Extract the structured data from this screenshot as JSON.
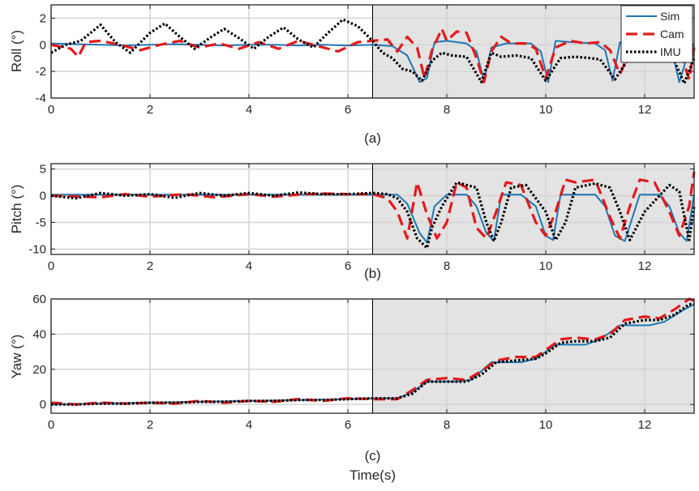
{
  "chart_data": [
    {
      "type": "line",
      "panel": "(a)",
      "ylabel": "Roll (°)",
      "xlabel": "",
      "xlim": [
        0,
        13
      ],
      "ylim": [
        -4,
        3
      ],
      "xticks": [
        "0",
        "2",
        "4",
        "6",
        "8",
        "10",
        "12"
      ],
      "yticks": [
        "-4",
        "-2",
        "0",
        "2"
      ],
      "shaded_region": [
        6.5,
        13
      ],
      "grid": true,
      "series": [
        {
          "name": "Sim",
          "color": "#1f77b4",
          "style": "solid",
          "x": [
            0,
            0.5,
            1,
            1.5,
            2,
            2.5,
            3,
            3.5,
            4,
            4.5,
            5,
            5.5,
            6,
            6.5,
            6.9,
            7.2,
            7.45,
            7.6,
            7.75,
            8.0,
            8.4,
            8.6,
            8.75,
            8.9,
            9.2,
            9.7,
            9.9,
            10.05,
            10.2,
            10.5,
            11.0,
            11.2,
            11.35,
            11.5,
            11.8,
            12.4,
            12.55,
            12.7,
            12.85,
            13.0
          ],
          "y": [
            0.1,
            0.05,
            0,
            -0.05,
            0,
            0.05,
            0,
            -0.05,
            0,
            0,
            -0.05,
            0,
            -0.05,
            0,
            -0.1,
            -0.8,
            -2.8,
            -2.5,
            0.2,
            0.3,
            0.1,
            -0.5,
            -2.7,
            -0.2,
            0.1,
            0.1,
            -0.5,
            -2.8,
            0.3,
            0.2,
            0.1,
            -0.4,
            -2.7,
            0.2,
            0.1,
            0,
            -0.4,
            -2.8,
            -1.0,
            0.1
          ]
        },
        {
          "name": "Cam",
          "color": "#e41a1c",
          "style": "dashed",
          "x": [
            0,
            0.4,
            0.55,
            0.7,
            1.0,
            1.4,
            1.8,
            2.2,
            2.6,
            3.0,
            3.4,
            3.8,
            4.2,
            4.6,
            5.0,
            5.4,
            5.8,
            6.2,
            6.5,
            6.8,
            7.0,
            7.2,
            7.4,
            7.55,
            7.7,
            7.9,
            8.0,
            8.2,
            8.4,
            8.6,
            8.75,
            8.9,
            9.1,
            9.3,
            9.6,
            9.8,
            10.0,
            10.2,
            10.5,
            10.8,
            11.1,
            11.3,
            11.5,
            11.8,
            12.1,
            12.4,
            12.7,
            12.9,
            13.0
          ],
          "y": [
            0,
            -0.3,
            -0.9,
            0.2,
            0.3,
            0,
            -0.4,
            0,
            0.3,
            -0.2,
            0.1,
            -0.3,
            0.2,
            -0.3,
            0.3,
            -0.1,
            -0.5,
            0.2,
            0.3,
            0.4,
            -0.5,
            0.6,
            -0.2,
            -2.5,
            -0.4,
            1.2,
            0.3,
            1.0,
            0.9,
            -1.0,
            -2.8,
            -0.5,
            0.6,
            0.1,
            0.1,
            -0.3,
            -2.5,
            -0.2,
            0.3,
            0.1,
            0.2,
            -0.4,
            -2.2,
            0.3,
            0.1,
            0,
            -0.3,
            -2.6,
            -0.2
          ]
        },
        {
          "name": "IMU",
          "color": "#000000",
          "style": "dotted",
          "x": [
            0,
            0.3,
            0.6,
            0.9,
            1.0,
            1.3,
            1.6,
            2.0,
            2.3,
            2.6,
            2.9,
            3.2,
            3.5,
            3.8,
            4.1,
            4.4,
            4.7,
            5.0,
            5.3,
            5.6,
            5.9,
            6.2,
            6.5,
            6.7,
            6.9,
            7.1,
            7.3,
            7.5,
            7.7,
            7.9,
            8.1,
            8.4,
            8.7,
            8.9,
            9.1,
            9.4,
            9.7,
            10.0,
            10.3,
            10.6,
            10.9,
            11.1,
            11.4,
            11.7,
            12.0,
            12.3,
            12.6,
            12.8,
            13.0
          ],
          "y": [
            -0.6,
            0,
            0.3,
            1.2,
            1.5,
            0.2,
            -0.6,
            0.9,
            1.6,
            0.6,
            -0.3,
            0.5,
            1.2,
            0.5,
            -0.3,
            0.6,
            1.3,
            0.4,
            -0.2,
            0.9,
            1.9,
            1.4,
            0.3,
            -0.6,
            -1.0,
            -1.8,
            -2.0,
            -2.7,
            -1.2,
            -0.6,
            -0.8,
            -0.9,
            -2.8,
            -0.6,
            -0.9,
            -0.8,
            -1.0,
            -2.7,
            -1.0,
            -0.9,
            -1.0,
            -1.1,
            -2.6,
            -0.9,
            -0.9,
            -1.0,
            -1.2,
            -2.9,
            -1.0
          ]
        }
      ]
    },
    {
      "type": "line",
      "panel": "(b)",
      "ylabel": "Pitch (°)",
      "xlabel": "",
      "xlim": [
        0,
        13
      ],
      "ylim": [
        -11,
        6
      ],
      "xticks": [
        "0",
        "2",
        "4",
        "6",
        "8",
        "10",
        "12"
      ],
      "yticks": [
        "-10",
        "-5",
        "0",
        "5"
      ],
      "shaded_region": [
        6.5,
        13
      ],
      "grid": true,
      "series": [
        {
          "name": "Sim",
          "color": "#1f77b4",
          "style": "solid",
          "x": [
            0,
            1,
            2,
            3,
            4,
            5,
            6,
            6.5,
            7.0,
            7.2,
            7.45,
            7.6,
            7.75,
            8.0,
            8.4,
            8.6,
            8.8,
            8.95,
            9.1,
            9.5,
            9.8,
            10.0,
            10.15,
            10.3,
            10.6,
            11.0,
            11.2,
            11.4,
            11.6,
            11.9,
            12.3,
            12.5,
            12.7,
            12.85,
            13.0
          ],
          "y": [
            0.2,
            0.2,
            0.2,
            0.2,
            0.2,
            0.2,
            0.2,
            0.2,
            0.2,
            -1.5,
            -7,
            -8.8,
            -2,
            0.2,
            0.2,
            -2,
            -7,
            -8.5,
            0.2,
            0.2,
            -2,
            -7.5,
            -8.3,
            0.2,
            0.2,
            0.2,
            -2,
            -7.5,
            -8.5,
            0.2,
            0.2,
            -2,
            -7,
            -8.5,
            0.3
          ]
        },
        {
          "name": "Cam",
          "color": "#e41a1c",
          "style": "dashed",
          "x": [
            0,
            1,
            1.5,
            2,
            2.7,
            3.3,
            4,
            4.5,
            5,
            5.5,
            6,
            6.5,
            6.8,
            7.0,
            7.2,
            7.4,
            7.6,
            7.8,
            8.0,
            8.2,
            8.4,
            8.6,
            8.8,
            9.0,
            9.2,
            9.5,
            9.8,
            10.0,
            10.2,
            10.4,
            10.6,
            11.0,
            11.3,
            11.5,
            11.7,
            11.9,
            12.2,
            12.5,
            12.7,
            12.9,
            13.0
          ],
          "y": [
            0,
            -0.3,
            0.3,
            -0.2,
            0.3,
            -0.3,
            0.3,
            -0.2,
            0.2,
            0.4,
            0.3,
            0.3,
            -0.5,
            -3,
            -8,
            2.5,
            -3.5,
            -8,
            -5,
            2.5,
            1.5,
            -6,
            -8,
            -3,
            2.5,
            2,
            -5,
            -7.5,
            -3,
            3,
            2.5,
            3,
            -4,
            -8,
            -2,
            3,
            2.5,
            -3,
            -7.5,
            -2,
            4.5
          ]
        },
        {
          "name": "IMU",
          "color": "#000000",
          "style": "dotted",
          "x": [
            0,
            0.5,
            1,
            1.5,
            2,
            2.5,
            3,
            3.5,
            4,
            4.5,
            5,
            5.5,
            6,
            6.5,
            6.8,
            7.0,
            7.2,
            7.4,
            7.6,
            7.7,
            7.9,
            8.2,
            8.6,
            8.8,
            8.95,
            9.1,
            9.3,
            9.6,
            10.0,
            10.2,
            10.4,
            10.6,
            11.0,
            11.3,
            11.5,
            11.7,
            12.0,
            12.5,
            12.7,
            12.9,
            13.0
          ],
          "y": [
            0,
            -0.5,
            0.5,
            0,
            0.3,
            -0.4,
            0.5,
            0,
            0.5,
            0,
            0.6,
            0.3,
            0.3,
            0.5,
            0.3,
            -0.5,
            -3,
            -8,
            -9.8,
            -6,
            -2,
            2.5,
            1.5,
            -5,
            -8.5,
            -5,
            1.5,
            2,
            -3,
            -8.3,
            -5,
            1.5,
            2.3,
            1.5,
            -3,
            -8.3,
            -3,
            2,
            0.8,
            -8.3,
            -2
          ]
        }
      ]
    },
    {
      "type": "line",
      "panel": "(c)",
      "ylabel": "Yaw (°)",
      "xlabel": "Time(s)",
      "xlim": [
        0,
        13
      ],
      "ylim": [
        -5,
        60
      ],
      "xticks": [
        "0",
        "2",
        "4",
        "6",
        "8",
        "10",
        "12"
      ],
      "yticks": [
        "0",
        "20",
        "40",
        "60"
      ],
      "shaded_region": [
        6.5,
        13
      ],
      "grid": true,
      "series": [
        {
          "name": "Sim",
          "color": "#1f77b4",
          "style": "solid",
          "x": [
            0,
            1,
            2,
            3,
            4,
            5,
            6,
            6.5,
            7.0,
            7.3,
            7.6,
            8.2,
            8.5,
            8.9,
            9.5,
            9.8,
            10.2,
            10.8,
            11.1,
            11.5,
            12.1,
            12.4,
            12.8,
            13.0
          ],
          "y": [
            0,
            0.5,
            1,
            1.5,
            2,
            2.5,
            3,
            3.5,
            3.5,
            7,
            13,
            13,
            14,
            24,
            24,
            26,
            34,
            34,
            37,
            45,
            45,
            47,
            54,
            57
          ]
        },
        {
          "name": "Cam",
          "color": "#e41a1c",
          "style": "dashed",
          "x": [
            0,
            0.5,
            1,
            1.5,
            2,
            2.5,
            3,
            3.5,
            4,
            4.5,
            5,
            5.5,
            6,
            6.5,
            7.0,
            7.3,
            7.6,
            8.0,
            8.4,
            8.7,
            9.0,
            9.4,
            9.8,
            10.0,
            10.3,
            10.6,
            11.0,
            11.3,
            11.6,
            12.0,
            12.3,
            12.6,
            12.9,
            13.0
          ],
          "y": [
            1,
            0,
            1,
            0.5,
            1,
            0.5,
            2,
            1,
            2,
            1.5,
            3,
            2,
            3.5,
            3,
            3,
            8,
            14,
            15,
            14,
            19,
            25,
            27,
            27,
            31,
            37,
            38,
            37,
            40,
            48,
            50,
            49,
            54,
            60,
            59
          ]
        },
        {
          "name": "IMU",
          "color": "#000000",
          "style": "dotted",
          "x": [
            0,
            0.5,
            1,
            1.5,
            2,
            2.5,
            3,
            3.5,
            4,
            4.5,
            5,
            5.5,
            6,
            6.5,
            7.0,
            7.3,
            7.6,
            8.0,
            8.4,
            8.7,
            9.0,
            9.4,
            9.8,
            10.0,
            10.3,
            10.6,
            11.0,
            11.3,
            11.6,
            12.0,
            12.3,
            12.6,
            12.9,
            13.0
          ],
          "y": [
            0,
            0,
            0.5,
            0.5,
            1,
            1,
            1.5,
            1.5,
            2,
            2,
            2.5,
            2.5,
            3,
            3.5,
            3.5,
            6,
            13,
            13,
            13,
            17,
            24,
            25,
            26,
            29,
            35,
            36,
            36,
            38,
            46,
            48,
            48,
            51,
            57,
            57
          ]
        }
      ]
    }
  ],
  "legend": {
    "placement": "top-right",
    "entries": [
      "Sim",
      "Cam",
      "IMU"
    ]
  }
}
